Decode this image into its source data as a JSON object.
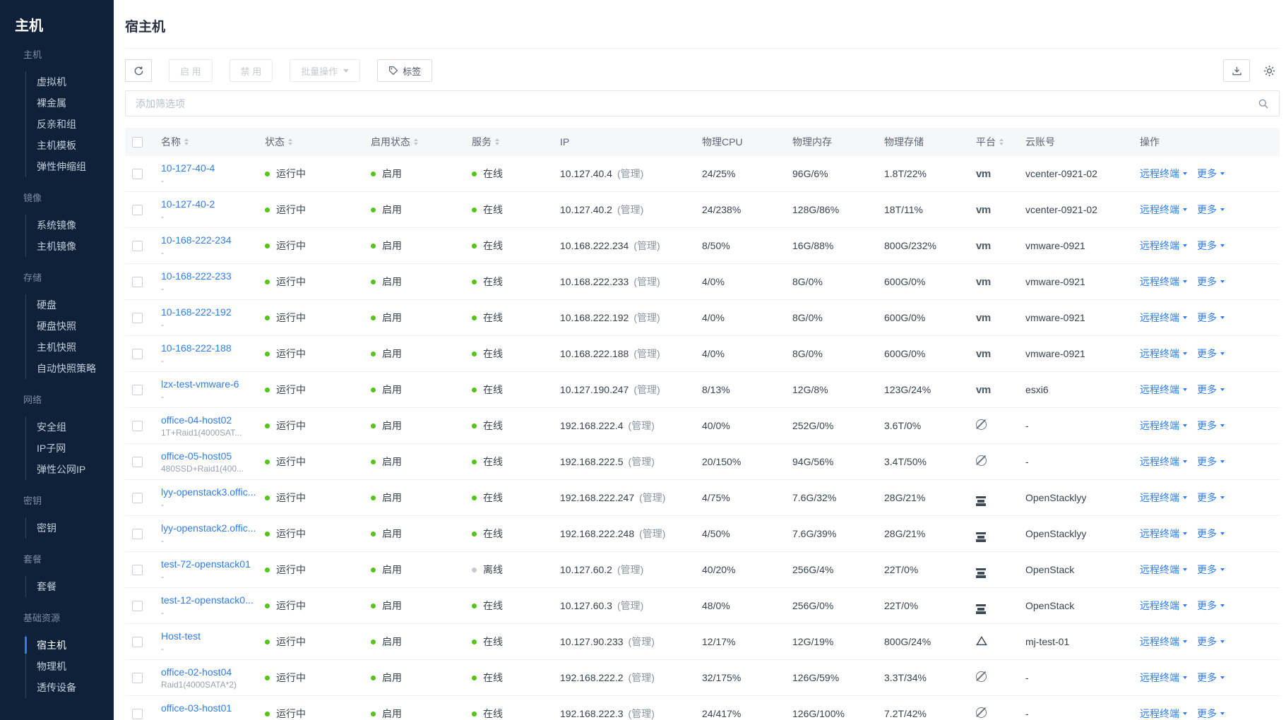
{
  "colors": {
    "accent": "#2f7df6",
    "link": "#2f7df6",
    "success_dot": "#52c41a",
    "offline_dot": "#c6cad1",
    "sidebar_bg": "#0e2138",
    "table_header_bg": "#f6f7f9"
  },
  "icons": {
    "toolbar": [
      "refresh-icon",
      "tag-icon",
      "download-icon",
      "gear-icon"
    ],
    "filter": "search-icon",
    "table": [
      "sort-arrows-icon",
      "chevron-down-icon",
      "checkbox"
    ],
    "platforms": {
      "vmware": "vm-text-logo",
      "halo": "circle-slash-logo",
      "openstack": "stacked-bars-logo",
      "other": "triangle-outline-logo"
    }
  },
  "sidebar": {
    "app_title": "主机",
    "sections": [
      {
        "label": "主机",
        "items": [
          {
            "label": "虚拟机"
          },
          {
            "label": "裸金属"
          },
          {
            "label": "反亲和组"
          },
          {
            "label": "主机模板"
          },
          {
            "label": "弹性伸缩组"
          }
        ]
      },
      {
        "label": "镜像",
        "items": [
          {
            "label": "系统镜像"
          },
          {
            "label": "主机镜像"
          }
        ]
      },
      {
        "label": "存储",
        "items": [
          {
            "label": "硬盘"
          },
          {
            "label": "硬盘快照"
          },
          {
            "label": "主机快照"
          },
          {
            "label": "自动快照策略"
          }
        ]
      },
      {
        "label": "网络",
        "items": [
          {
            "label": "安全组"
          },
          {
            "label": "IP子网"
          },
          {
            "label": "弹性公网IP"
          }
        ]
      },
      {
        "label": "密钥",
        "items": [
          {
            "label": "密钥"
          }
        ]
      },
      {
        "label": "套餐",
        "items": [
          {
            "label": "套餐"
          }
        ]
      },
      {
        "label": "基础资源",
        "items": [
          {
            "label": "宿主机",
            "selected": true
          },
          {
            "label": "物理机"
          },
          {
            "label": "透传设备"
          }
        ]
      }
    ]
  },
  "header": {
    "title": "宿主机"
  },
  "toolbar": {
    "enable": "启 用",
    "disable": "禁 用",
    "batch": "批量操作",
    "tag": "标签"
  },
  "filter": {
    "placeholder": "添加筛选项"
  },
  "table": {
    "columns": [
      {
        "key": "checkbox",
        "label": ""
      },
      {
        "key": "name",
        "label": "名称",
        "sortable": true
      },
      {
        "key": "status",
        "label": "状态",
        "sortable": true
      },
      {
        "key": "enabled",
        "label": "启用状态",
        "sortable": true
      },
      {
        "key": "service",
        "label": "服务",
        "sortable": true
      },
      {
        "key": "ip",
        "label": "IP"
      },
      {
        "key": "cpu",
        "label": "物理CPU"
      },
      {
        "key": "mem",
        "label": "物理内存"
      },
      {
        "key": "storage",
        "label": "物理存储"
      },
      {
        "key": "platform",
        "label": "平台",
        "sortable": true
      },
      {
        "key": "account",
        "label": "云账号"
      },
      {
        "key": "ops",
        "label": "操作"
      }
    ],
    "ops": {
      "terminal": "远程终端",
      "more": "更多"
    },
    "rows": [
      {
        "name": "10-127-40-4",
        "sub": "-",
        "status": "运行中",
        "enabled": "启用",
        "service": "在线",
        "service_state": "online",
        "ip": "10.127.40.4",
        "ip_tag": "(管理)",
        "cpu": "24/25%",
        "mem": "96G/6%",
        "storage": "1.8T/22%",
        "platform": "vmware",
        "account": "vcenter-0921-02"
      },
      {
        "name": "10-127-40-2",
        "sub": "-",
        "status": "运行中",
        "enabled": "启用",
        "service": "在线",
        "service_state": "online",
        "ip": "10.127.40.2",
        "ip_tag": "(管理)",
        "cpu": "24/238%",
        "mem": "128G/86%",
        "storage": "18T/11%",
        "platform": "vmware",
        "account": "vcenter-0921-02"
      },
      {
        "name": "10-168-222-234",
        "sub": "-",
        "status": "运行中",
        "enabled": "启用",
        "service": "在线",
        "service_state": "online",
        "ip": "10.168.222.234",
        "ip_tag": "(管理)",
        "cpu": "8/50%",
        "mem": "16G/88%",
        "storage": "800G/232%",
        "platform": "vmware",
        "account": "vmware-0921"
      },
      {
        "name": "10-168-222-233",
        "sub": "-",
        "status": "运行中",
        "enabled": "启用",
        "service": "在线",
        "service_state": "online",
        "ip": "10.168.222.233",
        "ip_tag": "(管理)",
        "cpu": "4/0%",
        "mem": "8G/0%",
        "storage": "600G/0%",
        "platform": "vmware",
        "account": "vmware-0921"
      },
      {
        "name": "10-168-222-192",
        "sub": "-",
        "status": "运行中",
        "enabled": "启用",
        "service": "在线",
        "service_state": "online",
        "ip": "10.168.222.192",
        "ip_tag": "(管理)",
        "cpu": "4/0%",
        "mem": "8G/0%",
        "storage": "600G/0%",
        "platform": "vmware",
        "account": "vmware-0921"
      },
      {
        "name": "10-168-222-188",
        "sub": "-",
        "status": "运行中",
        "enabled": "启用",
        "service": "在线",
        "service_state": "online",
        "ip": "10.168.222.188",
        "ip_tag": "(管理)",
        "cpu": "4/0%",
        "mem": "8G/0%",
        "storage": "600G/0%",
        "platform": "vmware",
        "account": "vmware-0921"
      },
      {
        "name": "lzx-test-vmware-6",
        "sub": "-",
        "status": "运行中",
        "enabled": "启用",
        "service": "在线",
        "service_state": "online",
        "ip": "10.127.190.247",
        "ip_tag": "(管理)",
        "cpu": "8/13%",
        "mem": "12G/8%",
        "storage": "123G/24%",
        "platform": "vmware",
        "account": "esxi6"
      },
      {
        "name": "office-04-host02",
        "sub": "1T+Raid1(4000SAT...",
        "status": "运行中",
        "enabled": "启用",
        "service": "在线",
        "service_state": "online",
        "ip": "192.168.222.4",
        "ip_tag": "(管理)",
        "cpu": "40/0%",
        "mem": "252G/0%",
        "storage": "3.6T/0%",
        "platform": "halo",
        "account": "-"
      },
      {
        "name": "office-05-host05",
        "sub": "480SSD+Raid1(400...",
        "status": "运行中",
        "enabled": "启用",
        "service": "在线",
        "service_state": "online",
        "ip": "192.168.222.5",
        "ip_tag": "(管理)",
        "cpu": "20/150%",
        "mem": "94G/56%",
        "storage": "3.4T/50%",
        "platform": "halo",
        "account": "-"
      },
      {
        "name": "lyy-openstack3.offic...",
        "sub": "-",
        "status": "运行中",
        "enabled": "启用",
        "service": "在线",
        "service_state": "online",
        "ip": "192.168.222.247",
        "ip_tag": "(管理)",
        "cpu": "4/75%",
        "mem": "7.6G/32%",
        "storage": "28G/21%",
        "platform": "openstack",
        "account": "OpenStacklyy"
      },
      {
        "name": "lyy-openstack2.offic...",
        "sub": "-",
        "status": "运行中",
        "enabled": "启用",
        "service": "在线",
        "service_state": "online",
        "ip": "192.168.222.248",
        "ip_tag": "(管理)",
        "cpu": "4/50%",
        "mem": "7.6G/39%",
        "storage": "28G/21%",
        "platform": "openstack",
        "account": "OpenStacklyy"
      },
      {
        "name": "test-72-openstack01",
        "sub": "-",
        "status": "运行中",
        "enabled": "启用",
        "service": "离线",
        "service_state": "offline",
        "ip": "10.127.60.2",
        "ip_tag": "(管理)",
        "cpu": "40/20%",
        "mem": "256G/4%",
        "storage": "22T/0%",
        "platform": "openstack",
        "account": "OpenStack"
      },
      {
        "name": "test-12-openstack0...",
        "sub": "-",
        "status": "运行中",
        "enabled": "启用",
        "service": "在线",
        "service_state": "online",
        "ip": "10.127.60.3",
        "ip_tag": "(管理)",
        "cpu": "48/0%",
        "mem": "256G/0%",
        "storage": "22T/0%",
        "platform": "openstack",
        "account": "OpenStack"
      },
      {
        "name": "Host-test",
        "sub": "-",
        "status": "运行中",
        "enabled": "启用",
        "service": "在线",
        "service_state": "online",
        "ip": "10.127.90.233",
        "ip_tag": "(管理)",
        "cpu": "12/17%",
        "mem": "12G/19%",
        "storage": "800G/24%",
        "platform": "other",
        "account": "mj-test-01"
      },
      {
        "name": "office-02-host04",
        "sub": "Raid1(4000SATA*2)",
        "status": "运行中",
        "enabled": "启用",
        "service": "在线",
        "service_state": "online",
        "ip": "192.168.222.2",
        "ip_tag": "(管理)",
        "cpu": "32/175%",
        "mem": "126G/59%",
        "storage": "3.3T/34%",
        "platform": "halo",
        "account": "-"
      },
      {
        "name": "office-03-host01",
        "sub": "-",
        "status": "运行中",
        "enabled": "启用",
        "service": "在线",
        "service_state": "online",
        "ip": "192.168.222.3",
        "ip_tag": "(管理)",
        "cpu": "24/417%",
        "mem": "126G/100%",
        "storage": "7.2T/42%",
        "platform": "halo",
        "account": "-"
      }
    ]
  }
}
